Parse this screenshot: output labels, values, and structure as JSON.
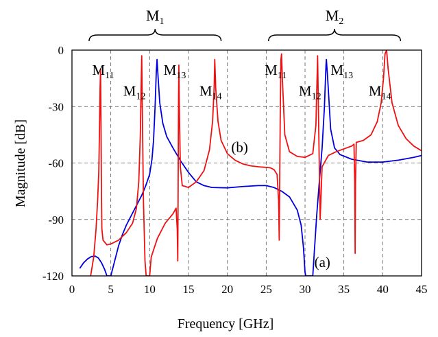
{
  "chart_data": {
    "type": "line",
    "xlabel": "Frequency [GHz]",
    "ylabel": "Magnitude [dB]",
    "xlim": [
      0,
      45
    ],
    "ylim": [
      -120,
      0
    ],
    "x_ticks": [
      0,
      5,
      10,
      15,
      20,
      25,
      30,
      35,
      40,
      45
    ],
    "y_ticks": [
      0,
      -30,
      -60,
      -90,
      -120
    ],
    "grid": true,
    "colors": {
      "a": "#0000dd",
      "b": "#ee1111"
    },
    "groups": [
      {
        "label": "M",
        "sub": "1",
        "from": 2.2,
        "to": 19.2
      },
      {
        "label": "M",
        "sub": "2",
        "from": 25.3,
        "to": 42.3
      }
    ],
    "mode_labels": [
      {
        "label": "M",
        "sub": "11",
        "x": 2.6,
        "y": -11
      },
      {
        "label": "M",
        "sub": "12",
        "x": 6.6,
        "y": -22
      },
      {
        "label": "M",
        "sub": "13",
        "x": 11.8,
        "y": -11
      },
      {
        "label": "M",
        "sub": "14",
        "x": 16.4,
        "y": -22
      },
      {
        "label": "M",
        "sub": "11",
        "x": 24.8,
        "y": -11
      },
      {
        "label": "M",
        "sub": "12",
        "x": 29.2,
        "y": -22
      },
      {
        "label": "M",
        "sub": "13",
        "x": 33.3,
        "y": -11
      },
      {
        "label": "M",
        "sub": "14",
        "x": 38.2,
        "y": -22
      }
    ],
    "series_labels": [
      {
        "text": "(a)",
        "x": 31.2,
        "y": -113
      },
      {
        "text": "(b)",
        "x": 20.5,
        "y": -52
      }
    ],
    "series": [
      {
        "key": "a",
        "points": [
          [
            1.0,
            -116
          ],
          [
            1.5,
            -113
          ],
          [
            2.0,
            -111
          ],
          [
            2.5,
            -109.7
          ],
          [
            3.0,
            -109.5
          ],
          [
            3.4,
            -110.5
          ],
          [
            3.8,
            -113
          ],
          [
            4.2,
            -116.5
          ],
          [
            4.5,
            -120
          ],
          [
            5.0,
            -120
          ],
          [
            5.5,
            -112
          ],
          [
            6.0,
            -104
          ],
          [
            6.5,
            -98
          ],
          [
            7.0,
            -93
          ],
          [
            7.5,
            -89
          ],
          [
            8.0,
            -85
          ],
          [
            8.5,
            -81
          ],
          [
            9.0,
            -77
          ],
          [
            9.5,
            -72
          ],
          [
            10.0,
            -66
          ],
          [
            10.3,
            -58
          ],
          [
            10.5,
            -48
          ],
          [
            10.7,
            -30
          ],
          [
            10.85,
            -12
          ],
          [
            10.95,
            -5
          ],
          [
            11.05,
            -12
          ],
          [
            11.3,
            -28
          ],
          [
            11.7,
            -39
          ],
          [
            12.2,
            -46
          ],
          [
            13.0,
            -52
          ],
          [
            14.0,
            -59
          ],
          [
            15.0,
            -65
          ],
          [
            16.0,
            -70
          ],
          [
            17.0,
            -72
          ],
          [
            18.0,
            -73
          ],
          [
            20.0,
            -73.2
          ],
          [
            22.0,
            -72.5
          ],
          [
            24.0,
            -72
          ],
          [
            25.0,
            -72
          ],
          [
            26.0,
            -73
          ],
          [
            27.0,
            -75
          ],
          [
            28.0,
            -78
          ],
          [
            29.0,
            -85
          ],
          [
            29.5,
            -93
          ],
          [
            29.8,
            -105
          ],
          [
            30.0,
            -118
          ],
          [
            30.1,
            -120
          ],
          [
            31.0,
            -120
          ],
          [
            31.2,
            -107
          ],
          [
            31.5,
            -88
          ],
          [
            31.8,
            -72
          ],
          [
            32.2,
            -52
          ],
          [
            32.5,
            -30
          ],
          [
            32.7,
            -8
          ],
          [
            32.75,
            -5
          ],
          [
            32.9,
            -14
          ],
          [
            33.3,
            -42
          ],
          [
            33.8,
            -52
          ],
          [
            34.5,
            -55.5
          ],
          [
            36.0,
            -58
          ],
          [
            38.0,
            -59.5
          ],
          [
            40.0,
            -59.5
          ],
          [
            42.0,
            -58.5
          ],
          [
            44.0,
            -57
          ],
          [
            45.0,
            -56
          ]
        ]
      },
      {
        "key": "b",
        "points": [
          [
            2.4,
            -120
          ],
          [
            2.8,
            -110
          ],
          [
            3.1,
            -95
          ],
          [
            3.3,
            -80
          ],
          [
            3.45,
            -65
          ],
          [
            3.55,
            -40
          ],
          [
            3.62,
            -20
          ],
          [
            3.68,
            -10
          ],
          [
            3.74,
            -40
          ],
          [
            3.8,
            -78
          ],
          [
            3.85,
            -95
          ],
          [
            4.0,
            -101
          ],
          [
            4.5,
            -103.5
          ],
          [
            5.0,
            -103
          ],
          [
            6.0,
            -101
          ],
          [
            7.0,
            -97
          ],
          [
            7.8,
            -92
          ],
          [
            8.3,
            -84
          ],
          [
            8.6,
            -70
          ],
          [
            8.8,
            -45
          ],
          [
            8.9,
            -20
          ],
          [
            8.98,
            -3
          ],
          [
            9.05,
            -30
          ],
          [
            9.2,
            -80
          ],
          [
            9.4,
            -112
          ],
          [
            9.55,
            -120
          ],
          [
            10.0,
            -120
          ],
          [
            10.2,
            -110
          ],
          [
            11.0,
            -100
          ],
          [
            12.0,
            -92
          ],
          [
            13.0,
            -87
          ],
          [
            13.4,
            -84
          ],
          [
            13.55,
            -95
          ],
          [
            13.62,
            -112
          ],
          [
            13.68,
            -60
          ],
          [
            13.72,
            -25
          ],
          [
            13.76,
            -8
          ],
          [
            13.82,
            -30
          ],
          [
            13.95,
            -62
          ],
          [
            14.2,
            -72
          ],
          [
            15.0,
            -73
          ],
          [
            16.0,
            -70
          ],
          [
            17.0,
            -64
          ],
          [
            17.7,
            -53
          ],
          [
            18.1,
            -38
          ],
          [
            18.3,
            -20
          ],
          [
            18.38,
            -5
          ],
          [
            18.5,
            -20
          ],
          [
            18.8,
            -38
          ],
          [
            19.2,
            -48
          ],
          [
            20.0,
            -55
          ],
          [
            21.0,
            -58.5
          ],
          [
            22.0,
            -60.5
          ],
          [
            23.0,
            -61.5
          ],
          [
            24.0,
            -62
          ],
          [
            25.5,
            -62.5
          ],
          [
            26.0,
            -63.5
          ],
          [
            26.4,
            -66
          ],
          [
            26.6,
            -80
          ],
          [
            26.68,
            -101
          ],
          [
            26.74,
            -70
          ],
          [
            26.82,
            -30
          ],
          [
            26.9,
            -5
          ],
          [
            26.98,
            -2
          ],
          [
            27.08,
            -15
          ],
          [
            27.4,
            -45
          ],
          [
            28.0,
            -54
          ],
          [
            29.0,
            -56.5
          ],
          [
            30.0,
            -57
          ],
          [
            31.0,
            -55
          ],
          [
            31.4,
            -40
          ],
          [
            31.55,
            -15
          ],
          [
            31.62,
            -3
          ],
          [
            31.7,
            -25
          ],
          [
            31.85,
            -65
          ],
          [
            31.95,
            -90
          ],
          [
            32.2,
            -62
          ],
          [
            33.0,
            -56
          ],
          [
            34.0,
            -54
          ],
          [
            35.0,
            -52.5
          ],
          [
            36.0,
            -51
          ],
          [
            36.3,
            -50
          ],
          [
            36.4,
            -70
          ],
          [
            36.45,
            -108
          ],
          [
            36.5,
            -70
          ],
          [
            36.6,
            -49
          ],
          [
            37.5,
            -48
          ],
          [
            38.5,
            -45
          ],
          [
            39.3,
            -38
          ],
          [
            39.8,
            -28
          ],
          [
            40.1,
            -15
          ],
          [
            40.3,
            -2
          ],
          [
            40.5,
            0
          ],
          [
            40.7,
            -10
          ],
          [
            41.2,
            -28
          ],
          [
            42.0,
            -40
          ],
          [
            43.0,
            -47
          ],
          [
            44.0,
            -51
          ],
          [
            45.0,
            -53.5
          ]
        ]
      }
    ]
  }
}
